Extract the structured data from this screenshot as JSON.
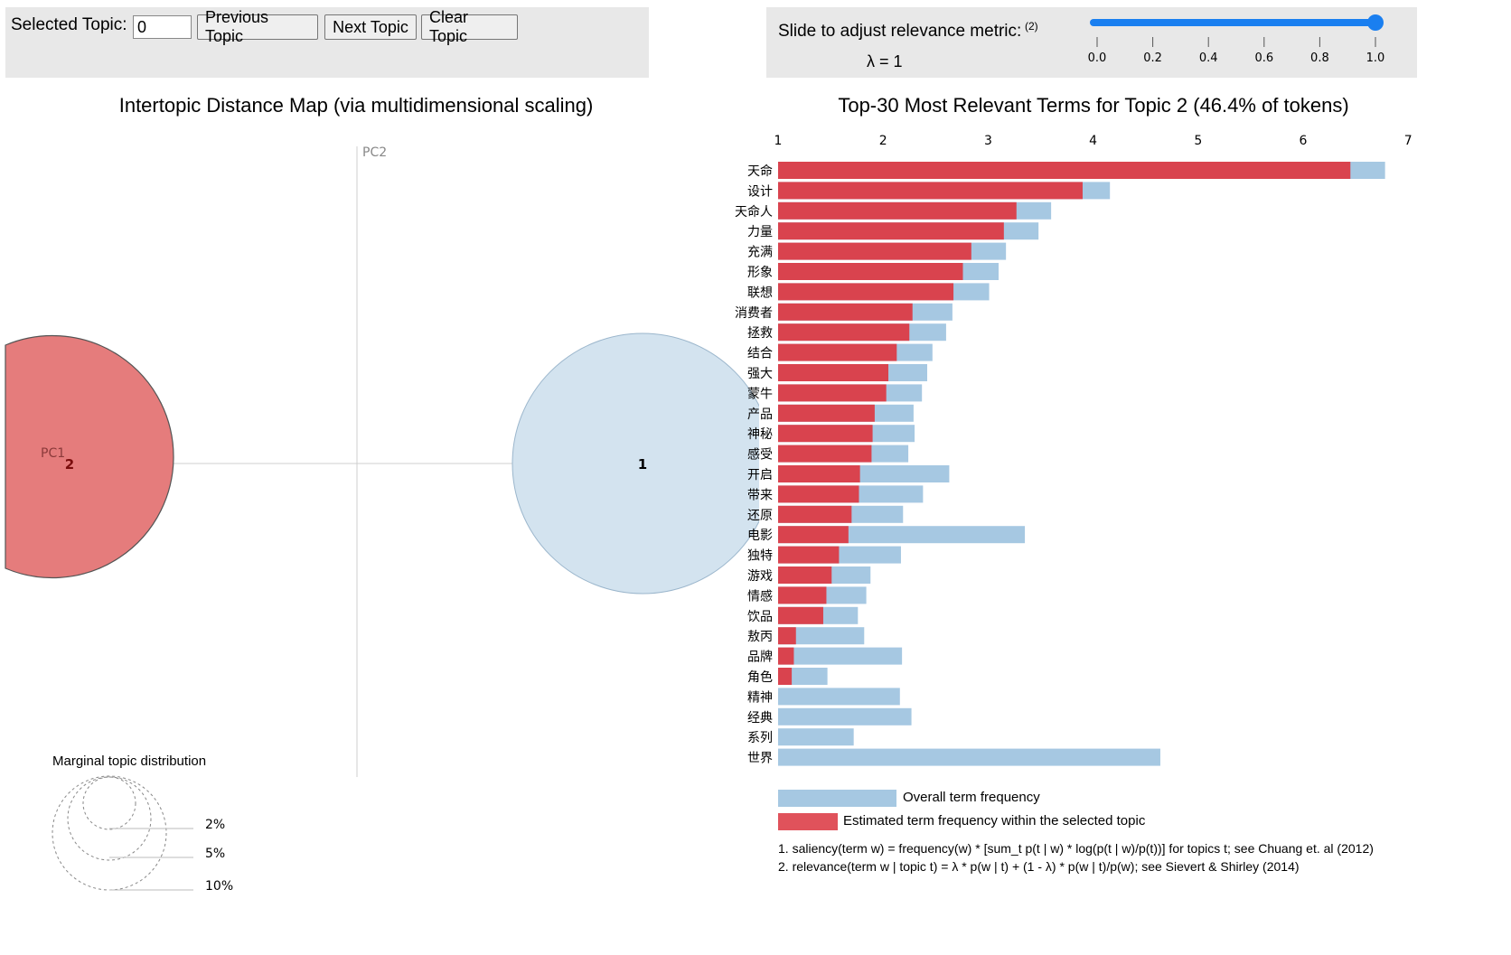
{
  "controls": {
    "topic_label": "Selected Topic:",
    "topic_value": "0",
    "prev_label": "Previous Topic",
    "next_label": "Next Topic",
    "clear_label": "Clear Topic",
    "slider_label": "Slide to adjust relevance metric:",
    "slider_footnote": "(2)",
    "lambda_text": "λ = 1",
    "lambda_value": 1,
    "slider_ticks": [
      "0.0",
      "0.2",
      "0.4",
      "0.6",
      "0.8",
      "1.0"
    ]
  },
  "map": {
    "title": "Intertopic Distance Map (via multidimensional scaling)",
    "pc1_label": "PC1",
    "pc2_label": "PC2",
    "topics": [
      {
        "label": "1",
        "selected": false
      },
      {
        "label": "2",
        "selected": true
      }
    ],
    "marginal": {
      "title": "Marginal topic distribution",
      "labels": [
        "2%",
        "5%",
        "10%"
      ]
    }
  },
  "chart_data": {
    "type": "bar",
    "title": "Top-30 Most Relevant Terms for Topic 2 (46.4% of tokens)",
    "x_ticks": [
      "1",
      "2",
      "3",
      "4",
      "5",
      "6",
      "7"
    ],
    "xlim": [
      1,
      7
    ],
    "categories": [
      "天命",
      "设计",
      "天命人",
      "力量",
      "充满",
      "形象",
      "联想",
      "消费者",
      "拯救",
      "结合",
      "强大",
      "蒙牛",
      "产品",
      "神秘",
      "感受",
      "开启",
      "带来",
      "还原",
      "电影",
      "独特",
      "游戏",
      "情感",
      "饮品",
      "敖丙",
      "品牌",
      "角色",
      "精神",
      "经典",
      "系列",
      "世界"
    ],
    "series": [
      {
        "name": "Overall term frequency",
        "color": "#a6c8e2",
        "values": [
          6.78,
          4.16,
          3.6,
          3.48,
          3.17,
          3.1,
          3.01,
          2.66,
          2.6,
          2.47,
          2.42,
          2.37,
          2.29,
          2.3,
          2.24,
          2.63,
          2.38,
          2.19,
          3.35,
          2.17,
          1.88,
          1.84,
          1.76,
          1.82,
          2.18,
          1.47,
          2.16,
          2.27,
          1.72,
          4.64
        ]
      },
      {
        "name": "Estimated term frequency within the selected topic",
        "color": "#d9434e",
        "values": [
          6.45,
          3.9,
          3.27,
          3.15,
          2.84,
          2.76,
          2.67,
          2.28,
          2.25,
          2.13,
          2.05,
          2.03,
          1.92,
          1.9,
          1.89,
          1.78,
          1.77,
          1.7,
          1.67,
          1.58,
          1.51,
          1.46,
          1.43,
          1.17,
          1.15,
          1.13,
          null,
          null,
          null,
          null
        ]
      }
    ],
    "legend": [
      "Overall term frequency",
      "Estimated term frequency within the selected topic"
    ]
  },
  "footnotes": {
    "note1": "1. saliency(term w) = frequency(w) * [sum_t p(t | w) * log(p(t | w)/p(t))] for topics t; see Chuang et. al (2012)",
    "note2": "2. relevance(term w | topic t) = λ * p(w | t) + (1 - λ) * p(w | t)/p(w); see Sievert & Shirley (2014)"
  }
}
